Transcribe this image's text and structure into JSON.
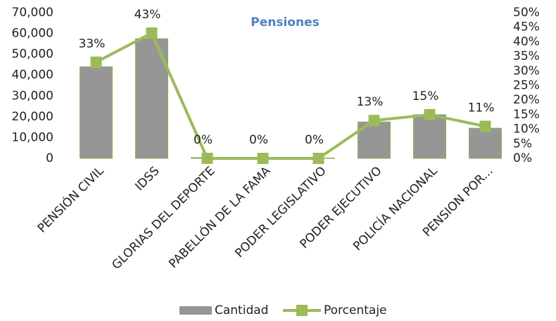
{
  "chart_data": {
    "type": "bar-line",
    "title": "Pensiones",
    "categories": [
      "PENSIÓN CIVIL",
      "IDSS",
      "GLORIAS DEL DEPORTE",
      "PABELLÓN DE LA FAMA",
      "PODER LEGISLATIVO",
      "PODER EJECUTIVO",
      "POLICÍA NACIONAL",
      "PENSION POR..."
    ],
    "series": [
      {
        "name": "Cantidad",
        "type": "bar",
        "color": "#969696",
        "values": [
          44000,
          57500,
          400,
          100,
          200,
          17500,
          21000,
          14500
        ]
      },
      {
        "name": "Porcentaje",
        "type": "line",
        "axis": "y2",
        "color": "#9bbb59",
        "values": [
          33,
          43,
          0,
          0,
          0,
          13,
          15,
          11
        ],
        "value_labels": [
          "33%",
          "43%",
          "0%",
          "0%",
          "0%",
          "13%",
          "15%",
          "11%"
        ]
      }
    ],
    "ylim": [
      0,
      70000
    ],
    "yticks": [
      0,
      {
        "value": 10000,
        "label": "10,000"
      },
      {
        "value": 20000,
        "label": "20,000"
      },
      {
        "value": 30000,
        "label": "30,000"
      },
      {
        "value": 40000,
        "label": "40,000"
      },
      {
        "value": 50000,
        "label": "50,000"
      },
      {
        "value": 60000,
        "label": "60,000"
      },
      {
        "value": 70000,
        "label": "70,000"
      }
    ],
    "y2lim": [
      0,
      50
    ],
    "y2ticks": [
      {
        "value": 0,
        "label": "0%"
      },
      {
        "value": 5,
        "label": "5%"
      },
      {
        "value": 10,
        "label": "10%"
      },
      {
        "value": 15,
        "label": "15%"
      },
      {
        "value": 20,
        "label": "20%"
      },
      {
        "value": 25,
        "label": "25%"
      },
      {
        "value": 30,
        "label": "30%"
      },
      {
        "value": 35,
        "label": "35%"
      },
      {
        "value": 40,
        "label": "40%"
      },
      {
        "value": 45,
        "label": "45%"
      },
      {
        "value": 50,
        "label": "50%"
      }
    ],
    "legend": "bottom"
  }
}
